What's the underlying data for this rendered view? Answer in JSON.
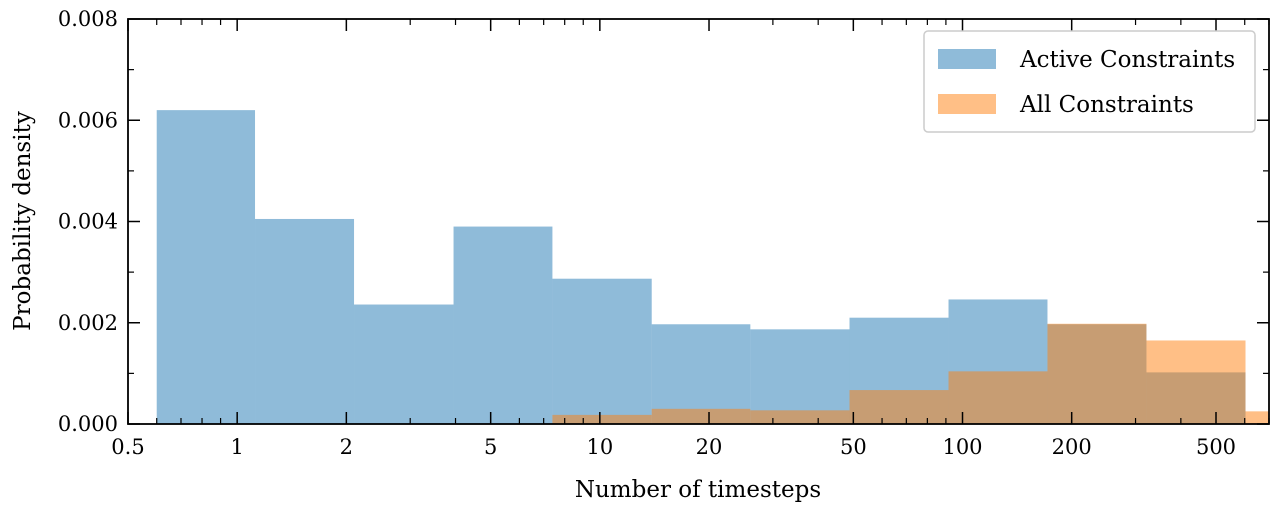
{
  "chart_data": {
    "type": "bar",
    "xlabel": "Number of timesteps",
    "ylabel": "Probability density",
    "xscale": "log",
    "xlim": [
      0.5,
      700
    ],
    "ylim": [
      0,
      0.008
    ],
    "x_ticks": [
      {
        "value": 0.5,
        "label": "0.5"
      },
      {
        "value": 1,
        "label": "1"
      },
      {
        "value": 2,
        "label": "2"
      },
      {
        "value": 5,
        "label": "5"
      },
      {
        "value": 10,
        "label": "10"
      },
      {
        "value": 20,
        "label": "20"
      },
      {
        "value": 50,
        "label": "50"
      },
      {
        "value": 100,
        "label": "100"
      },
      {
        "value": 200,
        "label": "200"
      },
      {
        "value": 500,
        "label": "500"
      }
    ],
    "x_minor_ticks": [
      0.6,
      0.7,
      0.8,
      0.9,
      3,
      4,
      6,
      7,
      8,
      9,
      30,
      40,
      60,
      70,
      80,
      90,
      300,
      400,
      600,
      700
    ],
    "y_ticks": [
      {
        "value": 0,
        "label": "0.000"
      },
      {
        "value": 0.002,
        "label": "0.002"
      },
      {
        "value": 0.004,
        "label": "0.004"
      },
      {
        "value": 0.006,
        "label": "0.006"
      },
      {
        "value": 0.008,
        "label": "0.008"
      }
    ],
    "legend_position": "top-right",
    "grid": false,
    "series": [
      {
        "name": "Active Constraints",
        "color": "#1f77b4",
        "opacity": 0.5,
        "bins": [
          {
            "x0": 0.6,
            "x1": 1.12,
            "y": 0.0062
          },
          {
            "x0": 1.12,
            "x1": 2.1,
            "y": 0.00405
          },
          {
            "x0": 2.1,
            "x1": 3.95,
            "y": 0.00236
          },
          {
            "x0": 3.95,
            "x1": 7.4,
            "y": 0.0039
          },
          {
            "x0": 7.4,
            "x1": 13.9,
            "y": 0.00287
          },
          {
            "x0": 13.9,
            "x1": 26.0,
            "y": 0.00197
          },
          {
            "x0": 26.0,
            "x1": 48.8,
            "y": 0.00187
          },
          {
            "x0": 48.8,
            "x1": 91.5,
            "y": 0.0021
          },
          {
            "x0": 91.5,
            "x1": 171.5,
            "y": 0.00246
          },
          {
            "x0": 171.5,
            "x1": 321.5,
            "y": 0.00197
          },
          {
            "x0": 321.5,
            "x1": 603,
            "y": 0.00102
          }
        ]
      },
      {
        "name": "All Constraints",
        "color": "#ff7f0e",
        "opacity": 0.5,
        "bins": [
          {
            "x0": 7.4,
            "x1": 13.9,
            "y": 0.00018
          },
          {
            "x0": 13.9,
            "x1": 26.0,
            "y": 0.0003
          },
          {
            "x0": 26.0,
            "x1": 48.8,
            "y": 0.00027
          },
          {
            "x0": 48.8,
            "x1": 91.5,
            "y": 0.00067
          },
          {
            "x0": 91.5,
            "x1": 171.5,
            "y": 0.00104
          },
          {
            "x0": 171.5,
            "x1": 321.5,
            "y": 0.00198
          },
          {
            "x0": 321.5,
            "x1": 603,
            "y": 0.00165
          },
          {
            "x0": 603,
            "x1": 1130,
            "y": 0.00025
          }
        ]
      }
    ]
  }
}
